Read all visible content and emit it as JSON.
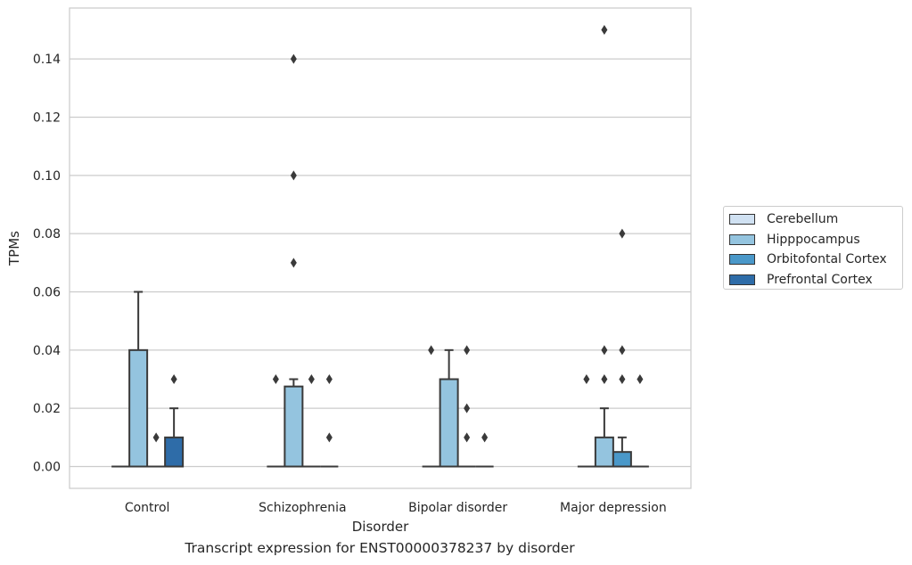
{
  "chart_data": {
    "type": "boxplot",
    "xlabel": "Disorder",
    "ylabel": "TPMs",
    "ylim": [
      -0.0075,
      0.1575
    ],
    "yticks": [
      "0.00",
      "0.02",
      "0.04",
      "0.06",
      "0.08",
      "0.10",
      "0.12",
      "0.14"
    ],
    "grid": "horizontal",
    "legend_placement": "right",
    "categories": [
      "Control",
      "Schizophrenia",
      "Bipolar disorder",
      "Major depression"
    ],
    "series": [
      {
        "name": "Cerebellum",
        "color": "#d0e1f2",
        "boxes": [
          {
            "q1": 0,
            "median": 0,
            "q3": 0,
            "whisker_low": 0,
            "whisker_high": 0,
            "outliers": []
          },
          {
            "q1": 0,
            "median": 0,
            "q3": 0,
            "whisker_low": 0,
            "whisker_high": 0,
            "outliers": [
              0.03
            ]
          },
          {
            "q1": 0,
            "median": 0,
            "q3": 0,
            "whisker_low": 0,
            "whisker_high": 0,
            "outliers": [
              0.04
            ]
          },
          {
            "q1": 0,
            "median": 0,
            "q3": 0,
            "whisker_low": 0,
            "whisker_high": 0,
            "outliers": [
              0.03
            ]
          }
        ]
      },
      {
        "name": "Hipppocampus",
        "color": "#94c4df",
        "boxes": [
          {
            "q1": 0,
            "median": 0,
            "q3": 0.04,
            "whisker_low": 0,
            "whisker_high": 0.06,
            "outliers": []
          },
          {
            "q1": 0,
            "median": 0,
            "q3": 0.0275,
            "whisker_low": 0,
            "whisker_high": 0.03,
            "outliers": [
              0.07,
              0.1,
              0.14
            ]
          },
          {
            "q1": 0,
            "median": 0,
            "q3": 0.03,
            "whisker_low": 0,
            "whisker_high": 0.04,
            "outliers": []
          },
          {
            "q1": 0,
            "median": 0,
            "q3": 0.01,
            "whisker_low": 0,
            "whisker_high": 0.02,
            "outliers": [
              0.03,
              0.04,
              0.15
            ]
          }
        ]
      },
      {
        "name": "Orbitofontal Cortex",
        "color": "#4a98c9",
        "boxes": [
          {
            "q1": 0,
            "median": 0,
            "q3": 0,
            "whisker_low": 0,
            "whisker_high": 0,
            "outliers": [
              0.01
            ]
          },
          {
            "q1": 0,
            "median": 0,
            "q3": 0,
            "whisker_low": 0,
            "whisker_high": 0,
            "outliers": [
              0.03
            ]
          },
          {
            "q1": 0,
            "median": 0,
            "q3": 0,
            "whisker_low": 0,
            "whisker_high": 0,
            "outliers": [
              0.01,
              0.02,
              0.04
            ]
          },
          {
            "q1": 0,
            "median": 0,
            "q3": 0.005,
            "whisker_low": 0,
            "whisker_high": 0.01,
            "outliers": [
              0.03,
              0.04,
              0.08
            ]
          }
        ]
      },
      {
        "name": "Prefrontal Cortex",
        "color": "#2e6ca8",
        "boxes": [
          {
            "q1": 0,
            "median": 0,
            "q3": 0.01,
            "whisker_low": 0,
            "whisker_high": 0.02,
            "outliers": [
              0.03
            ]
          },
          {
            "q1": 0,
            "median": 0,
            "q3": 0,
            "whisker_low": 0,
            "whisker_high": 0,
            "outliers": [
              0.01,
              0.03
            ]
          },
          {
            "q1": 0,
            "median": 0,
            "q3": 0,
            "whisker_low": 0,
            "whisker_high": 0,
            "outliers": [
              0.01
            ]
          },
          {
            "q1": 0,
            "median": 0,
            "q3": 0,
            "whisker_low": 0,
            "whisker_high": 0,
            "outliers": [
              0.03
            ]
          }
        ]
      }
    ]
  },
  "caption": "Transcript expression for ENST00000378237 by disorder"
}
